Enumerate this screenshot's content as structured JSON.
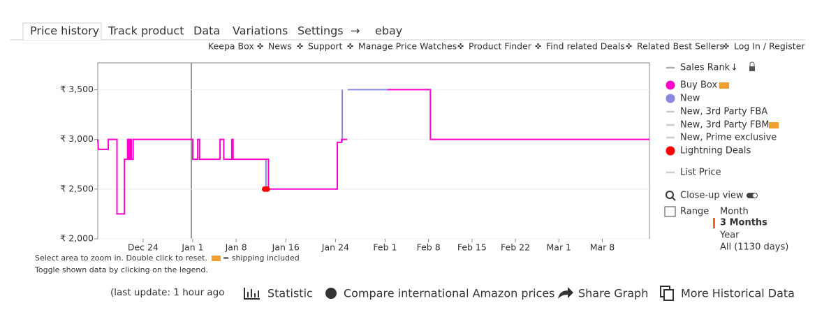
{
  "tabs": [
    "Price history",
    "Track product",
    "Data",
    "Variations",
    "Settings",
    "ebay"
  ],
  "links": [
    "Keepa Box",
    "News",
    "Support",
    "Manage Price Watches",
    "Product Finder",
    "Find related Deals",
    "Related Best Sellers",
    "Log In / Register"
  ],
  "chart_data": {
    "type": "line",
    "ylim": [
      2000,
      3770
    ],
    "yticks": [
      {
        "value": 2000,
        "label": "₹ 2,000"
      },
      {
        "value": 2500,
        "label": "₹ 2,500"
      },
      {
        "value": 3000,
        "label": "₹ 3,000"
      },
      {
        "value": 3500,
        "label": "₹ 3,500"
      }
    ],
    "xlim": [
      -15.3,
      73.6
    ],
    "xticks": [
      {
        "value": -8,
        "label": "Dec 24"
      },
      {
        "value": 0,
        "label": "Jan 1"
      },
      {
        "value": 7,
        "label": "Jan 8"
      },
      {
        "value": 15,
        "label": "Jan 16"
      },
      {
        "value": 23,
        "label": "Jan 24"
      },
      {
        "value": 31,
        "label": "Feb 1"
      },
      {
        "value": 38,
        "label": "Feb 8"
      },
      {
        "value": 45,
        "label": "Feb 15"
      },
      {
        "value": 52,
        "label": "Feb 22"
      },
      {
        "value": 59,
        "label": "Mar 1"
      },
      {
        "value": 66,
        "label": "Mar 8"
      }
    ],
    "grid": true,
    "series": [
      {
        "name": "Sales Rank",
        "color": "#aaaaaa",
        "marker": "line",
        "x": [],
        "values": []
      },
      {
        "name": "Buy Box",
        "color": "#ff00cc",
        "marker": "dot",
        "x": [
          -15.3,
          -15.2,
          -13.6,
          -13.6,
          -12.2,
          -12.2,
          -11.0,
          -11.0,
          -10.5,
          -10.5,
          -10.3,
          -10.3,
          -10.1,
          -10.1,
          -9.9,
          -9.9,
          -9.6,
          -9.6,
          -9.3,
          -9.3,
          0,
          0,
          0.8,
          0.8,
          1.1,
          1.1,
          4.4,
          4.4,
          5.0,
          5.0,
          6.3,
          6.3,
          6.5,
          6.5,
          12.2,
          12.2,
          23.3,
          23.3,
          24.0,
          24.0,
          24.9,
          null,
          31.4,
          38.3,
          38.3,
          73.6
        ],
        "values": [
          3000,
          2900,
          2900,
          3000,
          3000,
          2250,
          2250,
          2800,
          2800,
          3000,
          3000,
          2800,
          2800,
          3000,
          3000,
          2800,
          2800,
          3000,
          3000,
          3000,
          3000,
          2800,
          2800,
          3000,
          3000,
          2800,
          2800,
          3000,
          3000,
          2800,
          2800,
          3000,
          3000,
          2800,
          2800,
          2500,
          2500,
          2970,
          2970,
          3000,
          3000,
          null,
          3500,
          3500,
          3000,
          3000
        ]
      },
      {
        "name": "New",
        "color": "#8888dd",
        "marker": "dot",
        "x": [
          11.8,
          11.8,
          null,
          24.1,
          24.1,
          null,
          25.0,
          31.4
        ],
        "values": [
          2800,
          2500,
          null,
          2970,
          3500,
          null,
          3500,
          3500
        ]
      },
      {
        "name": "New, 3rd Party FBA",
        "color": "#cccccc",
        "marker": "line",
        "x": [],
        "values": []
      },
      {
        "name": "New, 3rd Party FBM",
        "color": "#cccccc",
        "marker": "line",
        "x": [],
        "values": []
      },
      {
        "name": "New, Prime exclusive",
        "color": "#cccccc",
        "marker": "line",
        "x": [],
        "values": []
      },
      {
        "name": "Lightning Deals",
        "color": "#ff0000",
        "marker": "dot",
        "points": true,
        "x": [
          11.6,
          12.0
        ],
        "values": [
          2500,
          2500
        ]
      },
      {
        "name": "List Price",
        "color": "#cccccc",
        "marker": "line",
        "x": [],
        "values": []
      }
    ]
  },
  "closeup": "Close-up view",
  "range": {
    "label": "Range",
    "options": [
      "Month",
      "3 Months",
      "Year",
      "All (1130 days)"
    ],
    "selected": 1
  },
  "notes": [
    "Select area to zoom in. Double click to reset.",
    "= shipping included",
    "Toggle shown data by clicking on the legend."
  ],
  "footer": {
    "update": "(last update: 1 hour ago",
    "actions": [
      "Statistic",
      "Compare international Amazon prices",
      "Share Graph",
      "More Historical Data"
    ]
  }
}
